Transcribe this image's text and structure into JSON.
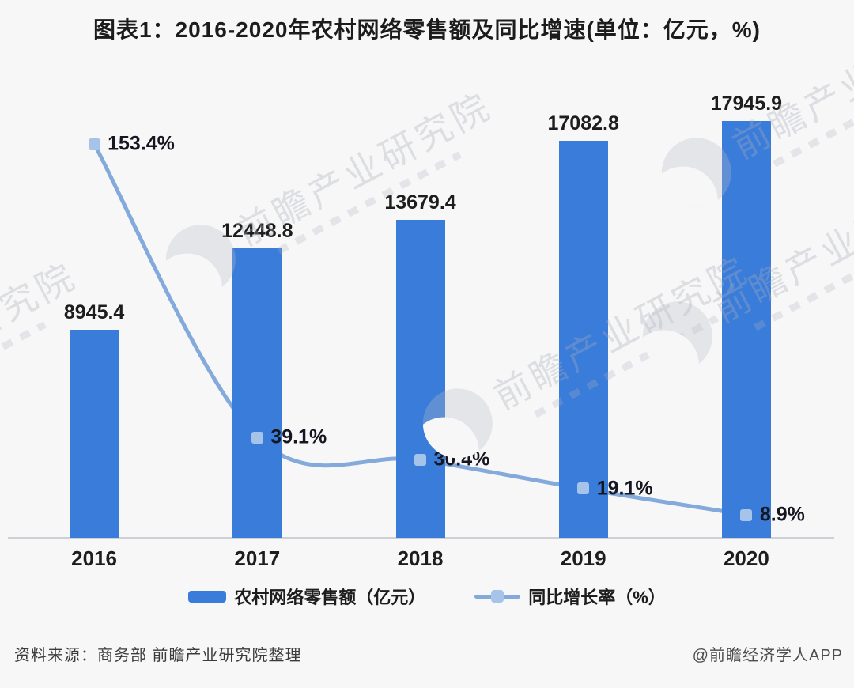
{
  "title": "图表1：2016-2020年农村网络零售额及同比增速(单位：亿元，%)",
  "chart_data": {
    "type": "bar",
    "subtype": "bar+line combo",
    "categories": [
      "2016",
      "2017",
      "2018",
      "2019",
      "2020"
    ],
    "series": [
      {
        "name": "农村网络零售额（亿元）",
        "type": "bar",
        "values": [
          8945.4,
          12448.8,
          13679.4,
          17082.8,
          17945.9
        ],
        "labels": [
          "8945.4",
          "12448.8",
          "13679.4",
          "17082.8",
          "17945.9"
        ]
      },
      {
        "name": "同比增长率（%）",
        "type": "line",
        "values": [
          153.4,
          39.1,
          30.4,
          19.1,
          8.9
        ],
        "labels": [
          "153.4%",
          "39.1%",
          "30.4%",
          "19.1%",
          "8.9%"
        ]
      }
    ],
    "title": "图表1：2016-2020年农村网络零售额及同比增速(单位：亿元，%)",
    "xlabel": "",
    "ylabel": "",
    "grid": false,
    "legend_position": "bottom",
    "data_labels": true,
    "axes_visible": false
  },
  "legend": {
    "bar_label": "农村网络零售额（亿元）",
    "line_label": "同比增长率（%）"
  },
  "footer": {
    "source": "资料来源：商务部 前瞻产业研究院整理",
    "credit": "@前瞻经济学人APP"
  },
  "watermark": {
    "text": "前瞻产业研究院"
  },
  "colors": {
    "background": "#f7f7f8",
    "bar": "#3a7cd9",
    "line": "#84aadc",
    "marker": "#a6c4ea",
    "axis": "#cdd0d4",
    "label": "#1d1d1d"
  }
}
